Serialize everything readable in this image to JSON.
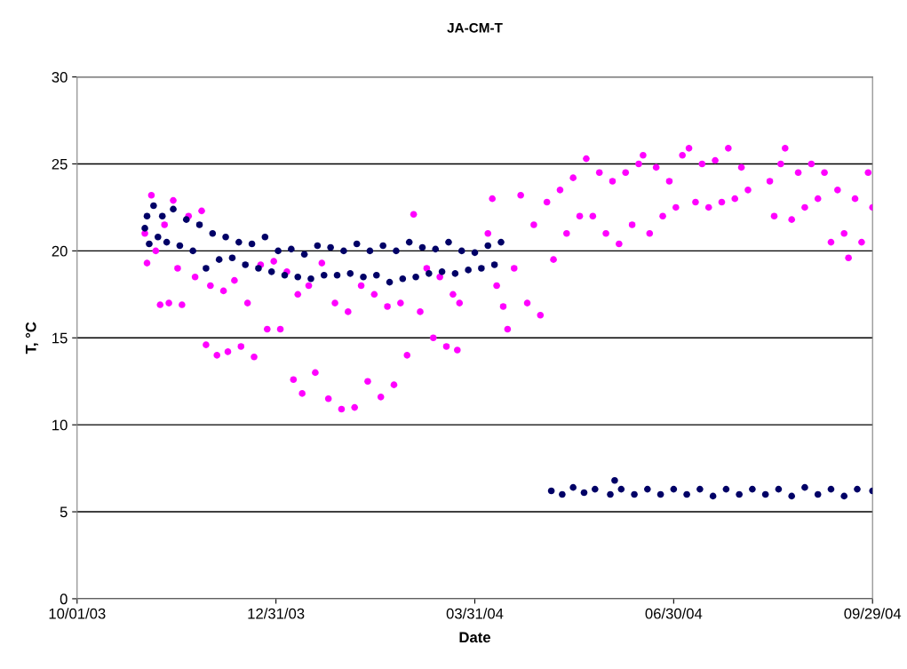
{
  "chart_data": {
    "type": "scatter",
    "title": "JA-CM-T",
    "xlabel": "Date",
    "ylabel": "T, °C",
    "xlim": [
      "2003-10-01",
      "2004-09-29"
    ],
    "xticks": [
      {
        "value": "2003-10-01",
        "label": "10/01/03"
      },
      {
        "value": "2003-12-31",
        "label": "12/31/03"
      },
      {
        "value": "2004-03-31",
        "label": "03/31/04"
      },
      {
        "value": "2004-06-30",
        "label": "06/30/04"
      },
      {
        "value": "2004-09-29",
        "label": "09/29/04"
      }
    ],
    "ylim": [
      0,
      30
    ],
    "yticks": [
      0,
      5,
      10,
      15,
      20,
      25,
      30
    ],
    "grid": "y",
    "marker": "circle",
    "series": [
      {
        "color": "#ff00ff",
        "x": [
          "2003-11-01",
          "2003-11-02",
          "2003-11-04",
          "2003-11-06",
          "2003-11-08",
          "2003-11-10",
          "2003-11-12",
          "2003-11-14",
          "2003-11-16",
          "2003-11-18",
          "2003-11-21",
          "2003-11-24",
          "2003-11-27",
          "2003-11-29",
          "2003-12-01",
          "2003-12-04",
          "2003-12-07",
          "2003-12-09",
          "2003-12-12",
          "2003-12-15",
          "2003-12-18",
          "2003-12-21",
          "2003-12-24",
          "2003-12-27",
          "2003-12-30",
          "2004-01-02",
          "2004-01-05",
          "2004-01-08",
          "2004-01-10",
          "2004-01-12",
          "2004-01-15",
          "2004-01-18",
          "2004-01-21",
          "2004-01-24",
          "2004-01-27",
          "2004-01-30",
          "2004-02-02",
          "2004-02-05",
          "2004-02-08",
          "2004-02-11",
          "2004-02-14",
          "2004-02-17",
          "2004-02-20",
          "2004-02-23",
          "2004-02-26",
          "2004-02-29",
          "2004-03-03",
          "2004-03-06",
          "2004-03-09",
          "2004-03-12",
          "2004-03-15",
          "2004-03-18",
          "2004-03-21",
          "2004-03-23",
          "2004-03-24",
          "2004-04-06",
          "2004-04-08",
          "2004-04-10",
          "2004-04-13",
          "2004-04-15",
          "2004-04-18",
          "2004-04-21",
          "2004-04-24",
          "2004-04-27",
          "2004-04-30",
          "2004-05-03",
          "2004-05-06",
          "2004-05-09",
          "2004-05-12",
          "2004-05-15",
          "2004-05-18",
          "2004-05-21",
          "2004-05-24",
          "2004-05-27",
          "2004-05-30",
          "2004-06-02",
          "2004-06-05",
          "2004-06-08",
          "2004-06-11",
          "2004-06-14",
          "2004-06-16",
          "2004-06-19",
          "2004-06-22",
          "2004-06-25",
          "2004-06-28",
          "2004-07-01",
          "2004-07-04",
          "2004-07-07",
          "2004-07-10",
          "2004-07-13",
          "2004-07-16",
          "2004-07-19",
          "2004-07-22",
          "2004-07-25",
          "2004-07-28",
          "2004-07-31",
          "2004-08-03",
          "2004-08-13",
          "2004-08-15",
          "2004-08-18",
          "2004-08-20",
          "2004-08-23",
          "2004-08-26",
          "2004-08-29",
          "2004-09-01",
          "2004-09-04",
          "2004-09-07",
          "2004-09-10",
          "2004-09-13",
          "2004-09-16",
          "2004-09-18",
          "2004-09-21",
          "2004-09-24",
          "2004-09-27",
          "2004-09-29"
        ],
        "values": [
          21.0,
          19.3,
          23.2,
          20.0,
          16.9,
          21.5,
          17.0,
          22.9,
          19.0,
          16.9,
          22.0,
          18.5,
          22.3,
          14.6,
          18.0,
          14.0,
          17.7,
          14.2,
          18.3,
          14.5,
          17.0,
          13.9,
          19.2,
          15.5,
          19.4,
          15.5,
          18.8,
          12.6,
          17.5,
          11.8,
          18.0,
          13.0,
          19.3,
          11.5,
          17.0,
          10.9,
          16.5,
          11.0,
          18.0,
          12.5,
          17.5,
          11.6,
          16.8,
          12.3,
          17.0,
          14.0,
          22.1,
          16.5,
          19.0,
          15.0,
          18.5,
          14.5,
          17.5,
          14.3,
          17.0,
          21.0,
          23.0,
          18.0,
          16.8,
          15.5,
          19.0,
          23.2,
          17.0,
          21.5,
          16.3,
          22.8,
          19.5,
          23.5,
          21.0,
          24.2,
          22.0,
          25.3,
          22.0,
          24.5,
          21.0,
          24.0,
          20.4,
          24.5,
          21.5,
          25.0,
          25.5,
          21.0,
          24.8,
          22.0,
          24.0,
          22.5,
          25.5,
          25.9,
          22.8,
          25.0,
          22.5,
          25.2,
          22.8,
          25.9,
          23.0,
          24.8,
          23.5,
          24.0,
          22.0,
          25.0,
          25.9,
          21.8,
          24.5,
          22.5,
          25.0,
          23.0,
          24.5,
          20.5,
          23.5,
          21.0,
          19.6,
          23.0,
          20.5,
          24.5,
          22.5
        ]
      },
      {
        "color": "#000066",
        "x": [
          "2003-11-01",
          "2003-11-02",
          "2003-11-03",
          "2003-11-05",
          "2003-11-07",
          "2003-11-09",
          "2003-11-11",
          "2003-11-14",
          "2003-11-17",
          "2003-11-20",
          "2003-11-23",
          "2003-11-26",
          "2003-11-29",
          "2003-12-02",
          "2003-12-05",
          "2003-12-08",
          "2003-12-11",
          "2003-12-14",
          "2003-12-17",
          "2003-12-20",
          "2003-12-23",
          "2003-12-26",
          "2003-12-29",
          "2004-01-01",
          "2004-01-04",
          "2004-01-07",
          "2004-01-10",
          "2004-01-13",
          "2004-01-16",
          "2004-01-19",
          "2004-01-22",
          "2004-01-25",
          "2004-01-28",
          "2004-01-31",
          "2004-02-03",
          "2004-02-06",
          "2004-02-09",
          "2004-02-12",
          "2004-02-15",
          "2004-02-18",
          "2004-02-21",
          "2004-02-24",
          "2004-02-27",
          "2004-03-01",
          "2004-03-04",
          "2004-03-07",
          "2004-03-10",
          "2004-03-13",
          "2004-03-16",
          "2004-03-19",
          "2004-03-22",
          "2004-03-25",
          "2004-03-28",
          "2004-03-31",
          "2004-04-03",
          "2004-04-06",
          "2004-04-09",
          "2004-04-12",
          "2004-05-05",
          "2004-05-10",
          "2004-05-15",
          "2004-05-20",
          "2004-05-25",
          "2004-06-01",
          "2004-06-03",
          "2004-06-06",
          "2004-06-12",
          "2004-06-18",
          "2004-06-24",
          "2004-06-30",
          "2004-07-06",
          "2004-07-12",
          "2004-07-18",
          "2004-07-24",
          "2004-07-30",
          "2004-08-05",
          "2004-08-11",
          "2004-08-17",
          "2004-08-23",
          "2004-08-29",
          "2004-09-04",
          "2004-09-10",
          "2004-09-16",
          "2004-09-22",
          "2004-09-29"
        ],
        "values": [
          21.3,
          22.0,
          20.4,
          22.6,
          20.8,
          22.0,
          20.5,
          22.4,
          20.3,
          21.8,
          20.0,
          21.5,
          19.0,
          21.0,
          19.5,
          20.8,
          19.6,
          20.5,
          19.2,
          20.4,
          19.0,
          20.8,
          18.8,
          20.0,
          18.6,
          20.1,
          18.5,
          19.8,
          18.4,
          20.3,
          18.6,
          20.2,
          18.6,
          20.0,
          18.7,
          20.4,
          18.5,
          20.0,
          18.6,
          20.3,
          18.2,
          20.0,
          18.4,
          20.5,
          18.5,
          20.2,
          18.7,
          20.1,
          18.8,
          20.5,
          18.7,
          20.0,
          18.9,
          19.9,
          19.0,
          20.3,
          19.2,
          20.5,
          6.2,
          6.0,
          6.4,
          6.1,
          6.3,
          6.0,
          6.8,
          6.3,
          6.0,
          6.3,
          6.0,
          6.3,
          6.0,
          6.3,
          5.9,
          6.3,
          6.0,
          6.3,
          6.0,
          6.3,
          5.9,
          6.4,
          6.0,
          6.3,
          5.9,
          6.3,
          6.2
        ]
      }
    ]
  }
}
